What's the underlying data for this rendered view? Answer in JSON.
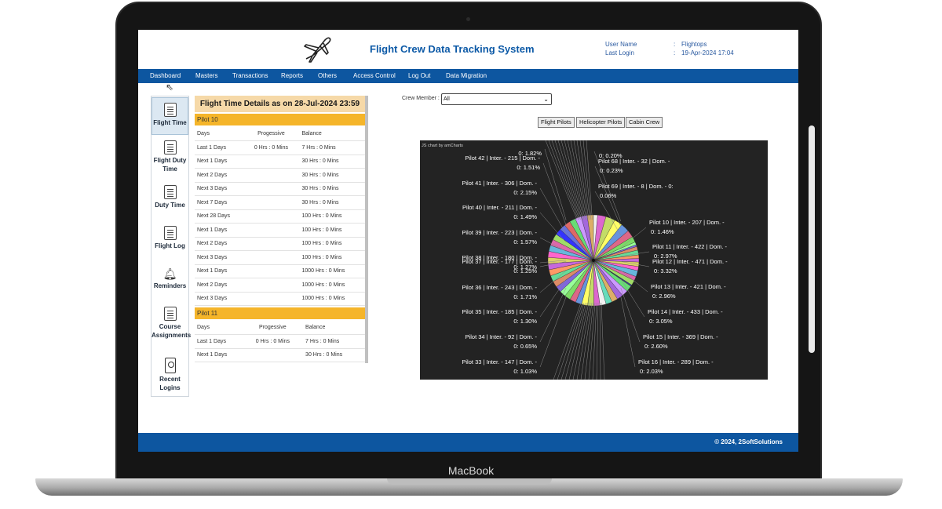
{
  "device": {
    "brand": "MacBook"
  },
  "header": {
    "title": "Flight Crew Data Tracking System",
    "user_name_label": "User Name",
    "user_name_value": "Flightops",
    "last_login_label": "Last Login",
    "last_login_value": "19-Apr-2024 17:04",
    "separator": ":"
  },
  "nav": [
    "Dashboard",
    "Masters",
    "Transactions",
    "Reports",
    "Others",
    "Access Control",
    "Log Out",
    "Data Migration"
  ],
  "sidebar": [
    {
      "label": "Flight Time",
      "icon": "document-list-icon",
      "active": true
    },
    {
      "label": "Flight Duty Time",
      "icon": "document-list-icon",
      "active": false
    },
    {
      "label": "Duty Time",
      "icon": "document-list-icon",
      "active": false
    },
    {
      "label": "Flight Log",
      "icon": "document-list-icon",
      "active": false
    },
    {
      "label": "Reminders",
      "icon": "bell-icon",
      "active": false
    },
    {
      "label": "Course Assignments",
      "icon": "clipboard-icon",
      "active": false
    },
    {
      "label": "Recent Logins",
      "icon": "id-badge-icon",
      "active": false
    }
  ],
  "flight_time": {
    "heading": "Flight Time Details as on 28-Jul-2024 23:59",
    "pilots": [
      {
        "name": "Pilot 10",
        "columns": [
          "Days",
          "Progessive",
          "Balance"
        ],
        "rows": [
          [
            "Last 1 Days",
            "0 Hrs : 0 Mins",
            "7 Hrs : 0 Mins"
          ],
          [
            "Next 1 Days",
            "",
            "30 Hrs : 0 Mins"
          ],
          [
            "Next 2 Days",
            "",
            "30 Hrs : 0 Mins"
          ],
          [
            "Next 3 Days",
            "",
            "30 Hrs : 0 Mins"
          ],
          [
            "Next 7 Days",
            "",
            "30 Hrs : 0 Mins"
          ],
          [
            "Next 28 Days",
            "",
            "100 Hrs : 0 Mins"
          ],
          [
            "Next 1 Days",
            "",
            "100 Hrs : 0 Mins"
          ],
          [
            "Next 2 Days",
            "",
            "100 Hrs : 0 Mins"
          ],
          [
            "Next 3 Days",
            "",
            "100 Hrs : 0 Mins"
          ],
          [
            "Next 1 Days",
            "",
            "1000 Hrs : 0 Mins"
          ],
          [
            "Next 2 Days",
            "",
            "1000 Hrs : 0 Mins"
          ],
          [
            "Next 3 Days",
            "",
            "1000 Hrs : 0 Mins"
          ]
        ]
      },
      {
        "name": "Pilot 11",
        "columns": [
          "Days",
          "Progessive",
          "Balance"
        ],
        "rows": [
          [
            "Last 1 Days",
            "0 Hrs : 0 Mins",
            "7 Hrs : 0 Mins"
          ],
          [
            "Next 1 Days",
            "",
            "30 Hrs : 0 Mins"
          ]
        ]
      }
    ]
  },
  "crew_filter": {
    "label": "Crew Member :",
    "selected": "All",
    "buttons": [
      "Flight Pilots",
      "Helicopter Pilots",
      "Cabin Crew"
    ]
  },
  "chart_data": {
    "type": "pie",
    "credit": "JS chart by amCharts",
    "slices": [
      {
        "name": "Pilot 10",
        "inter": 207,
        "dom": 0,
        "percent": 1.46,
        "label": "Pilot 10 | Inter. - 207 | Dom. -",
        "label2": "0: 1.46%"
      },
      {
        "name": "Pilot 11",
        "inter": 422,
        "dom": 0,
        "percent": 2.97,
        "label": "Pilot 11 | Inter. - 422 | Dom. -",
        "label2": "0: 2.97%"
      },
      {
        "name": "Pilot 12",
        "inter": 471,
        "dom": 0,
        "percent": 3.32,
        "label": "Pilot 12 | Inter. - 471 | Dom. -",
        "label2": "0: 3.32%"
      },
      {
        "name": "Pilot 13",
        "inter": 421,
        "dom": 0,
        "percent": 2.96,
        "label": "Pilot 13 | Inter. - 421 | Dom. -",
        "label2": "0: 2.96%"
      },
      {
        "name": "Pilot 14",
        "inter": 433,
        "dom": 0,
        "percent": 3.05,
        "label": "Pilot 14 | Inter. - 433 | Dom. -",
        "label2": "0: 3.05%"
      },
      {
        "name": "Pilot 15",
        "inter": 369,
        "dom": 0,
        "percent": 2.6,
        "label": "Pilot 15 | Inter. - 369 | Dom. -",
        "label2": "0: 2.60%"
      },
      {
        "name": "Pilot 16",
        "inter": 289,
        "dom": 0,
        "percent": 2.03,
        "label": "Pilot 16 | Inter. - 289 | Dom. -",
        "label2": "0: 2.03%"
      },
      {
        "name": "Pilot 33",
        "inter": 147,
        "dom": 0,
        "percent": 1.03,
        "label": "Pilot 33 | Inter. - 147 | Dom. -",
        "label2": "0: 1.03%"
      },
      {
        "name": "Pilot 34",
        "inter": 92,
        "dom": 0,
        "percent": 0.65,
        "label": "Pilot 34 | Inter. - 92 | Dom. -",
        "label2": "0: 0.65%"
      },
      {
        "name": "Pilot 35",
        "inter": 185,
        "dom": 0,
        "percent": 1.3,
        "label": "Pilot 35 | Inter. - 185 | Dom. -",
        "label2": "0: 1.30%"
      },
      {
        "name": "Pilot 36",
        "inter": 243,
        "dom": 0,
        "percent": 1.71,
        "label": "Pilot 36 | Inter. - 243 | Dom. -",
        "label2": "0: 1.71%"
      },
      {
        "name": "Pilot 37",
        "inter": 177,
        "dom": 0,
        "percent": 1.25,
        "label": "Pilot 37 | Inter. - 177 | Dom. -",
        "label2": "0: 1.25%"
      },
      {
        "name": "Pilot 38",
        "inter": 180,
        "dom": 0,
        "percent": 1.27,
        "label": "Pilot 38 | Inter. - 180 | Dom. -",
        "label2": "0: 1.27%"
      },
      {
        "name": "Pilot 39",
        "inter": 223,
        "dom": 0,
        "percent": 1.57,
        "label": "Pilot 39 | Inter. - 223 | Dom. -",
        "label2": "0: 1.57%"
      },
      {
        "name": "Pilot 40",
        "inter": 211,
        "dom": 0,
        "percent": 1.49,
        "label": "Pilot 40 | Inter. - 211 | Dom. -",
        "label2": "0: 1.49%"
      },
      {
        "name": "Pilot 41",
        "inter": 306,
        "dom": 0,
        "percent": 2.15,
        "label": "Pilot 41 | Inter. - 306 | Dom. -",
        "label2": "0: 2.15%"
      },
      {
        "name": "Pilot 42",
        "inter": 215,
        "dom": 0,
        "percent": 1.51,
        "label": "Pilot 42 | Inter. - 215 | Dom. -",
        "label2": "0: 1.51%"
      },
      {
        "name": "",
        "percent": 1.82,
        "label": "",
        "label2": "0: 1.82%"
      },
      {
        "name": "",
        "percent": 0.2,
        "label": "",
        "label2": "0: 0.20%"
      },
      {
        "name": "Pilot 68",
        "inter": 32,
        "dom": 0,
        "percent": 0.23,
        "label": "Pilot 68 | Inter. - 32 | Dom. -",
        "label2": "0: 0.23%"
      },
      {
        "name": "Pilot 69",
        "inter": 8,
        "dom": 0,
        "percent": 0.06,
        "label": "Pilot 69 | Inter. - 8 | Dom. - 0:",
        "label2": "0.06%"
      }
    ],
    "palette": [
      "#f2f2f2",
      "#67b7dc",
      "#6794dc",
      "#6771dc",
      "#8067dc",
      "#a367dc",
      "#c767dc",
      "#dc67ce",
      "#dc67ab",
      "#dc6788",
      "#dc6967",
      "#dc8c67",
      "#dcaf67",
      "#dcd267",
      "#c3dc67",
      "#a0dc67",
      "#7ddc67",
      "#67dc75",
      "#67dc98",
      "#67dcbb",
      "#ff66cc",
      "#ffff66",
      "#3333ff",
      "#99ff99",
      "#cc99ff",
      "#ff9966"
    ]
  },
  "footer": {
    "copyright": "© 2024, 2SoftSolutions"
  }
}
